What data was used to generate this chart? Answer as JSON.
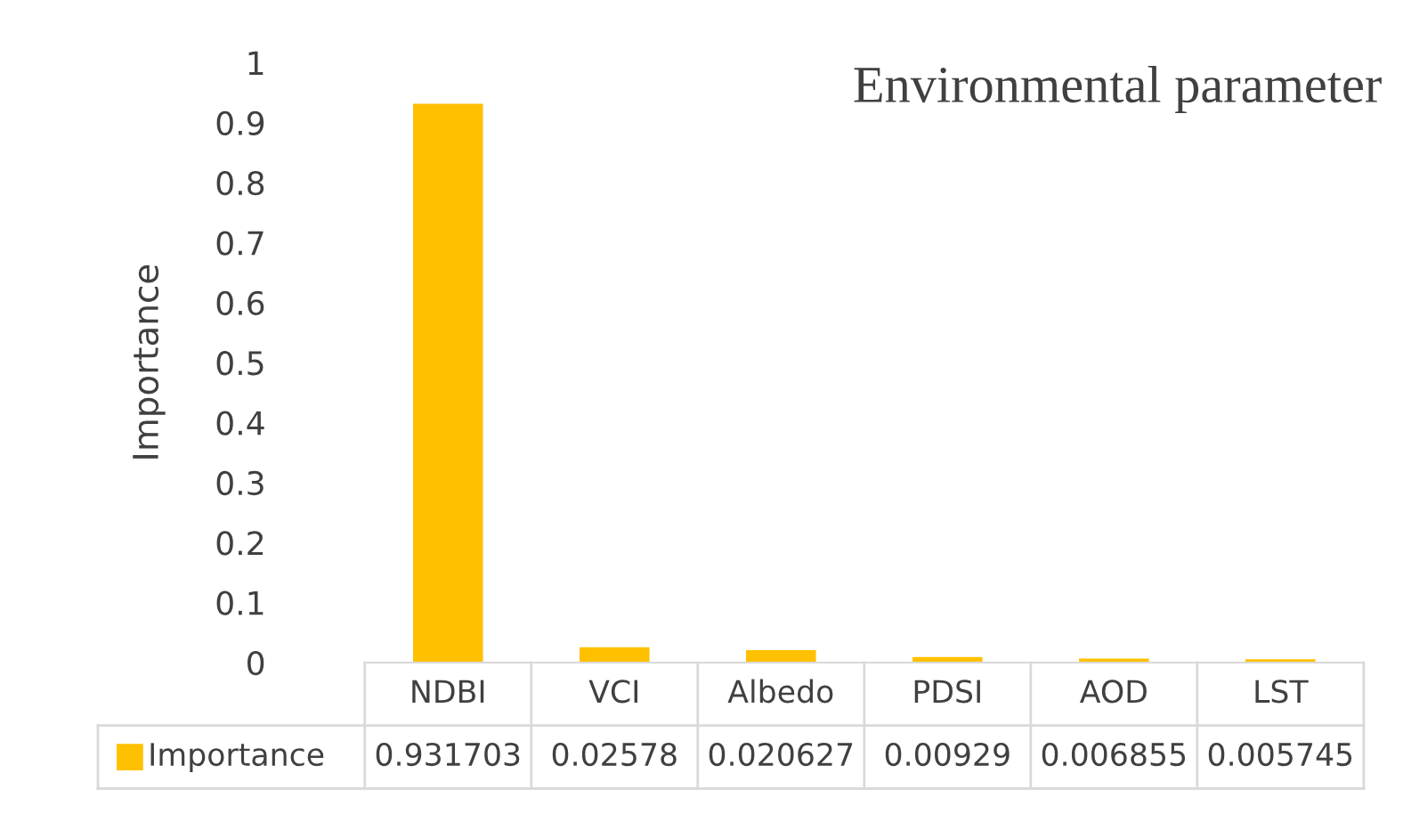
{
  "chart_data": {
    "type": "bar",
    "title": "Environmental parameter",
    "ylabel": "Importance",
    "categories": [
      "NDBI",
      "VCI",
      "Albedo",
      "PDSI",
      "AOD",
      "LST"
    ],
    "series": [
      {
        "name": "Importance",
        "color": "#ffc000",
        "values": [
          0.931703,
          0.02578,
          0.020627,
          0.00929,
          0.006855,
          0.005745
        ]
      }
    ],
    "ylim": [
      0,
      1
    ],
    "yticks": [
      0,
      0.1,
      0.2,
      0.3,
      0.4,
      0.5,
      0.6,
      0.7,
      0.8,
      0.9,
      1
    ],
    "data_labels": true,
    "grid": false,
    "legend": "bottom"
  }
}
